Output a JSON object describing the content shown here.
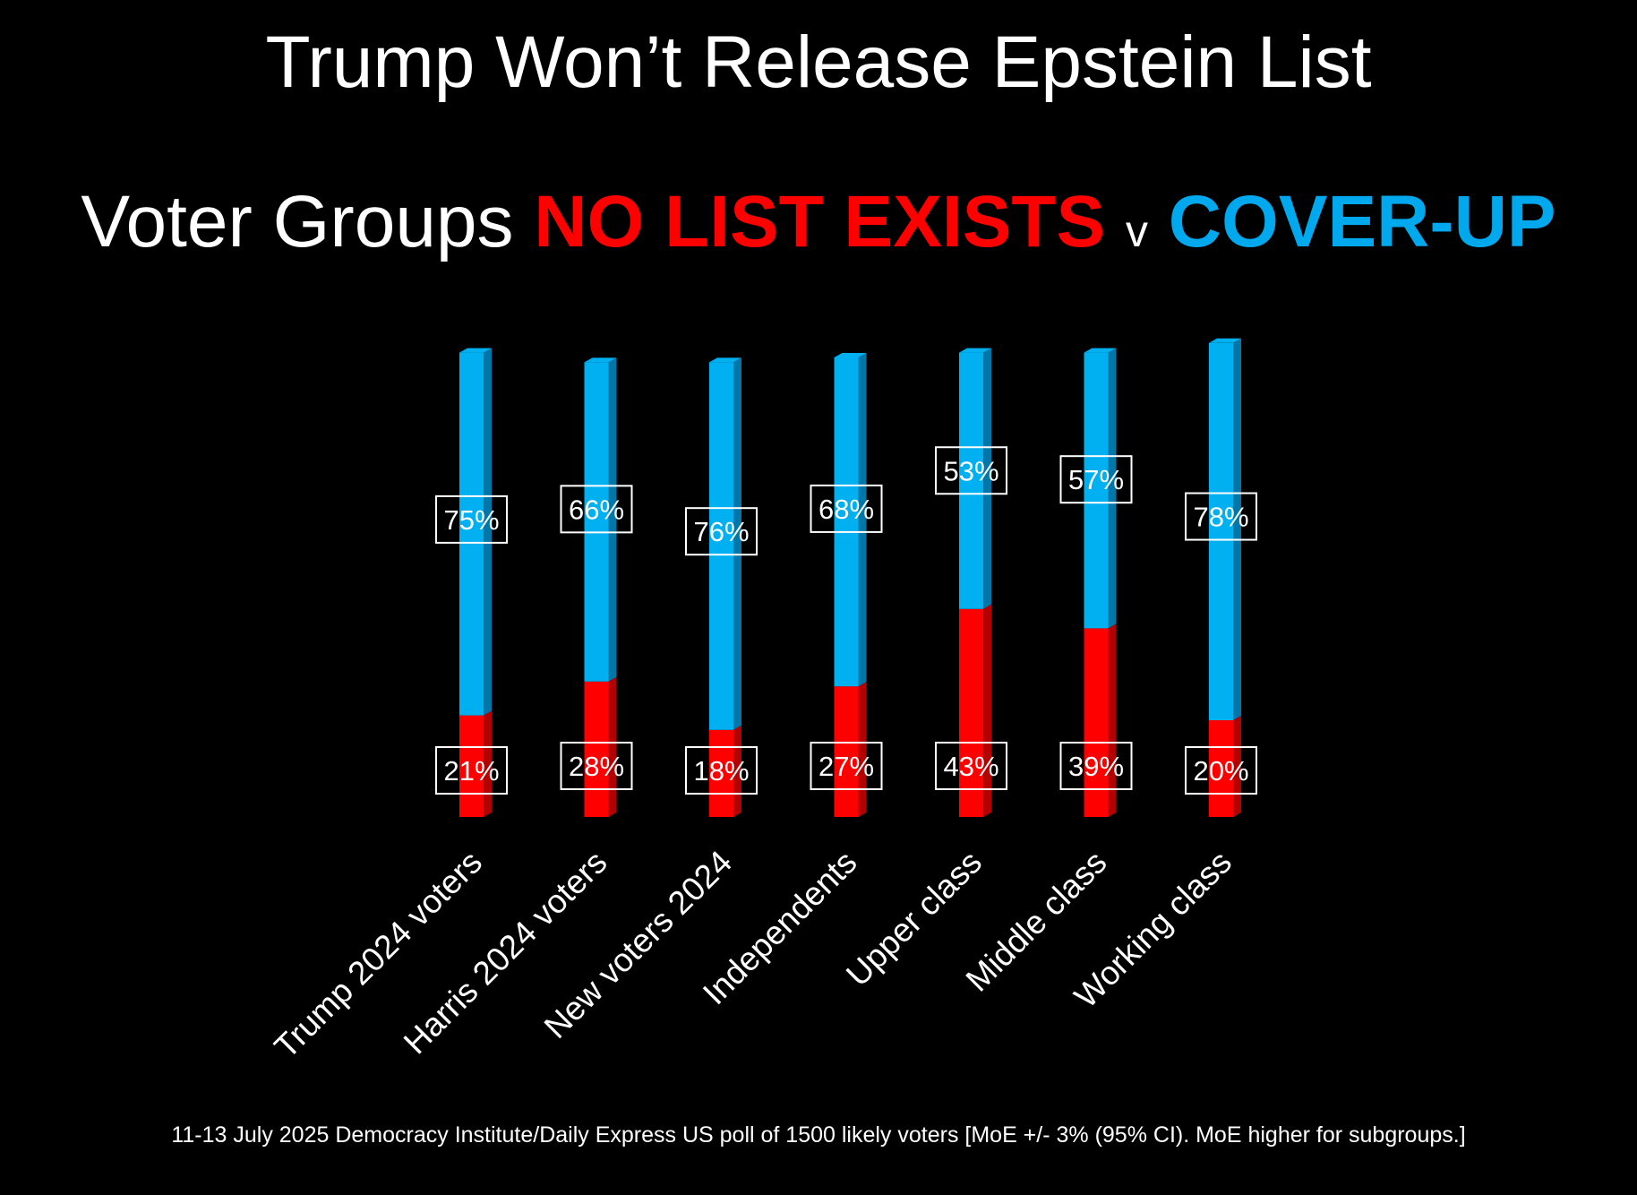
{
  "slide": {
    "title": "Trump Won’t Release Epstein List",
    "subtitle_prefix": "Voter Groups",
    "subtitle_red": "NO LIST EXISTS",
    "subtitle_v": "v",
    "subtitle_blue": "COVER-UP",
    "footnote": "11-13 July 2025 Democracy Institute/Daily Express US poll of 1500 likely voters [MoE +/- 3% (95% CI). MoE higher for subgroups.]"
  },
  "colors": {
    "no_list": "#ff0000",
    "no_list_side": "#b30000",
    "cover_up": "#00b0f0",
    "cover_up_side": "#0077a8",
    "background": "#000000"
  },
  "chart_data": {
    "type": "bar",
    "stacked": true,
    "categories": [
      "Trump 2024 voters",
      "Harris 2024 voters",
      "New voters 2024",
      "Independents",
      "Upper class",
      "Middle class",
      "Working class"
    ],
    "series": [
      {
        "key": "no_list",
        "values": [
          21,
          28,
          18,
          27,
          43,
          39,
          20
        ]
      },
      {
        "key": "cover_up",
        "values": [
          75,
          66,
          76,
          68,
          53,
          57,
          78
        ]
      }
    ],
    "value_suffix": "%",
    "grid": false,
    "legend": "none"
  }
}
